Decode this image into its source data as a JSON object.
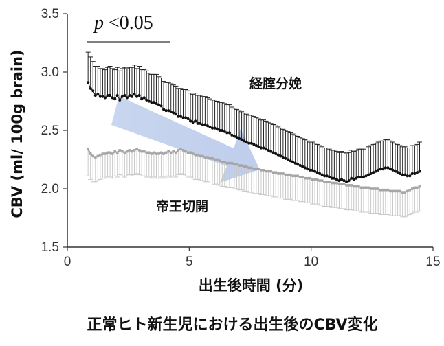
{
  "chart_data": {
    "type": "line",
    "title": "",
    "caption": "正常ヒト新生児における出生後のCBV変化",
    "xlabel": "出生後時間 (分)",
    "ylabel": "CBV (ml/ 100g brain)",
    "xlim": [
      0,
      15
    ],
    "ylim": [
      1.5,
      3.5
    ],
    "xticks": [
      0,
      5,
      10,
      15
    ],
    "yticks": [
      "1.5",
      "2.0",
      "2.5",
      "3.0",
      "3.5"
    ],
    "grid": false,
    "annotation": {
      "p": "p",
      "rest": " <0.05"
    },
    "series": [
      {
        "name": "経腟分娩",
        "color": "#111111",
        "error_direction": "up",
        "x0": 0.85,
        "dx": 0.1,
        "values": [
          2.91,
          2.86,
          2.84,
          2.8,
          2.81,
          2.79,
          2.79,
          2.78,
          2.8,
          2.8,
          2.78,
          2.77,
          2.8,
          2.76,
          2.79,
          2.8,
          2.78,
          2.8,
          2.79,
          2.81,
          2.79,
          2.8,
          2.77,
          2.78,
          2.76,
          2.75,
          2.74,
          2.74,
          2.73,
          2.72,
          2.71,
          2.68,
          2.67,
          2.67,
          2.66,
          2.65,
          2.64,
          2.62,
          2.62,
          2.61,
          2.61,
          2.6,
          2.58,
          2.57,
          2.58,
          2.56,
          2.56,
          2.55,
          2.55,
          2.54,
          2.53,
          2.52,
          2.52,
          2.51,
          2.5,
          2.5,
          2.49,
          2.48,
          2.48,
          2.46,
          2.45,
          2.44,
          2.43,
          2.42,
          2.41,
          2.4,
          2.39,
          2.39,
          2.38,
          2.37,
          2.36,
          2.35,
          2.35,
          2.34,
          2.33,
          2.32,
          2.31,
          2.3,
          2.29,
          2.28,
          2.27,
          2.26,
          2.25,
          2.24,
          2.23,
          2.22,
          2.21,
          2.2,
          2.19,
          2.18,
          2.17,
          2.16,
          2.16,
          2.15,
          2.14,
          2.13,
          2.12,
          2.11,
          2.11,
          2.1,
          2.09,
          2.09,
          2.08,
          2.07,
          2.08,
          2.07,
          2.06,
          2.07,
          2.09,
          2.08,
          2.09,
          2.1,
          2.1,
          2.1,
          2.11,
          2.12,
          2.13,
          2.14,
          2.15,
          2.16,
          2.17,
          2.17,
          2.18,
          2.18,
          2.17,
          2.16,
          2.15,
          2.14,
          2.13,
          2.12,
          2.12,
          2.11,
          2.11,
          2.13,
          2.13,
          2.14,
          2.15
        ],
        "error": [
          0.26,
          0.27,
          0.25,
          0.25,
          0.24,
          0.24,
          0.24,
          0.24,
          0.24,
          0.25,
          0.25,
          0.25,
          0.24,
          0.25,
          0.24,
          0.24,
          0.25,
          0.24,
          0.25,
          0.25,
          0.24,
          0.25,
          0.25,
          0.24,
          0.25,
          0.24,
          0.24,
          0.24,
          0.25,
          0.24,
          0.24,
          0.24,
          0.24,
          0.24,
          0.24,
          0.24,
          0.24,
          0.24,
          0.24,
          0.24,
          0.24,
          0.24,
          0.24,
          0.24,
          0.24,
          0.24,
          0.24,
          0.24,
          0.24,
          0.24,
          0.24,
          0.24,
          0.24,
          0.24,
          0.24,
          0.24,
          0.24,
          0.24,
          0.24,
          0.24,
          0.24,
          0.24,
          0.24,
          0.24,
          0.24,
          0.24,
          0.24,
          0.24,
          0.24,
          0.24,
          0.24,
          0.24,
          0.24,
          0.24,
          0.24,
          0.24,
          0.24,
          0.24,
          0.24,
          0.24,
          0.24,
          0.24,
          0.24,
          0.24,
          0.24,
          0.24,
          0.24,
          0.24,
          0.24,
          0.24,
          0.24,
          0.24,
          0.24,
          0.24,
          0.24,
          0.24,
          0.24,
          0.24,
          0.24,
          0.24,
          0.24,
          0.24,
          0.24,
          0.24,
          0.24,
          0.24,
          0.24,
          0.24,
          0.24,
          0.24,
          0.24,
          0.24,
          0.24,
          0.24,
          0.24,
          0.24,
          0.24,
          0.24,
          0.24,
          0.24,
          0.24,
          0.24,
          0.24,
          0.24,
          0.24,
          0.24,
          0.24,
          0.24,
          0.24,
          0.24,
          0.24,
          0.24,
          0.24,
          0.24,
          0.24,
          0.24,
          0.25
        ]
      },
      {
        "name": "帝王切開",
        "color": "#aaaaaa",
        "error_direction": "down",
        "x0": 0.85,
        "dx": 0.1,
        "values": [
          2.34,
          2.3,
          2.28,
          2.27,
          2.28,
          2.29,
          2.3,
          2.3,
          2.31,
          2.31,
          2.3,
          2.32,
          2.31,
          2.33,
          2.32,
          2.31,
          2.32,
          2.33,
          2.32,
          2.33,
          2.34,
          2.33,
          2.32,
          2.32,
          2.31,
          2.31,
          2.3,
          2.31,
          2.3,
          2.3,
          2.31,
          2.3,
          2.31,
          2.32,
          2.31,
          2.32,
          2.31,
          2.33,
          2.34,
          2.33,
          2.32,
          2.31,
          2.31,
          2.3,
          2.29,
          2.29,
          2.28,
          2.28,
          2.27,
          2.27,
          2.26,
          2.26,
          2.25,
          2.25,
          2.24,
          2.23,
          2.23,
          2.22,
          2.22,
          2.22,
          2.21,
          2.21,
          2.2,
          2.2,
          2.19,
          2.19,
          2.18,
          2.18,
          2.17,
          2.17,
          2.17,
          2.16,
          2.16,
          2.15,
          2.15,
          2.15,
          2.14,
          2.14,
          2.13,
          2.13,
          2.13,
          2.12,
          2.12,
          2.12,
          2.11,
          2.11,
          2.11,
          2.1,
          2.1,
          2.09,
          2.09,
          2.09,
          2.08,
          2.08,
          2.08,
          2.07,
          2.07,
          2.06,
          2.06,
          2.06,
          2.05,
          2.05,
          2.05,
          2.04,
          2.04,
          2.04,
          2.03,
          2.03,
          2.03,
          2.02,
          2.02,
          2.02,
          2.01,
          2.01,
          2.01,
          2.01,
          2.0,
          2.0,
          2.0,
          2.0,
          1.99,
          1.99,
          1.99,
          1.99,
          1.98,
          1.98,
          1.98,
          1.98,
          1.98,
          1.97,
          1.97,
          1.98,
          1.99,
          2.0,
          2.01,
          2.01,
          2.02
        ],
        "error": [
          0.23,
          0.22,
          0.22,
          0.21,
          0.21,
          0.21,
          0.21,
          0.21,
          0.21,
          0.21,
          0.21,
          0.21,
          0.21,
          0.21,
          0.21,
          0.21,
          0.21,
          0.21,
          0.21,
          0.21,
          0.21,
          0.21,
          0.21,
          0.21,
          0.21,
          0.21,
          0.21,
          0.21,
          0.21,
          0.21,
          0.21,
          0.21,
          0.21,
          0.21,
          0.21,
          0.21,
          0.21,
          0.21,
          0.21,
          0.21,
          0.21,
          0.21,
          0.21,
          0.21,
          0.21,
          0.21,
          0.21,
          0.21,
          0.21,
          0.21,
          0.21,
          0.21,
          0.21,
          0.21,
          0.21,
          0.21,
          0.21,
          0.21,
          0.21,
          0.21,
          0.21,
          0.21,
          0.21,
          0.21,
          0.21,
          0.21,
          0.21,
          0.21,
          0.21,
          0.21,
          0.21,
          0.21,
          0.21,
          0.21,
          0.21,
          0.21,
          0.21,
          0.21,
          0.21,
          0.21,
          0.21,
          0.21,
          0.21,
          0.21,
          0.21,
          0.21,
          0.21,
          0.21,
          0.21,
          0.21,
          0.21,
          0.21,
          0.21,
          0.21,
          0.21,
          0.21,
          0.21,
          0.21,
          0.21,
          0.21,
          0.21,
          0.21,
          0.21,
          0.21,
          0.21,
          0.21,
          0.21,
          0.21,
          0.21,
          0.21,
          0.21,
          0.21,
          0.21,
          0.21,
          0.21,
          0.21,
          0.21,
          0.21,
          0.21,
          0.21,
          0.21,
          0.21,
          0.21,
          0.21,
          0.21,
          0.21,
          0.21,
          0.21,
          0.21,
          0.21,
          0.21,
          0.21,
          0.21,
          0.21,
          0.21,
          0.21,
          0.21
        ]
      }
    ]
  }
}
